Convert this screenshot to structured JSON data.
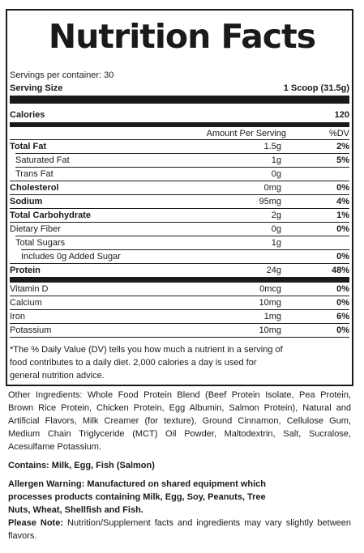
{
  "title": "Nutrition Facts",
  "servings": "Servings per container: 30",
  "serving_size": {
    "label": "Serving Size",
    "value": "1 Scoop (31.5g)"
  },
  "calories": {
    "label": "Calories",
    "value": "120"
  },
  "headers": {
    "amount": "Amount Per Serving",
    "dv": "%DV"
  },
  "nutrients": [
    {
      "name": "Total Fat",
      "amount": "1.5g",
      "dv": "2%",
      "bold": true,
      "indent": 0
    },
    {
      "name": "Saturated Fat",
      "amount": "1g",
      "dv": "5%",
      "bold": false,
      "indent": 1
    },
    {
      "name": "Trans Fat",
      "amount": "0g",
      "dv": "",
      "bold": false,
      "indent": 1
    },
    {
      "name": "Cholesterol",
      "amount": "0mg",
      "dv": "0%",
      "bold": true,
      "indent": 0
    },
    {
      "name": "Sodium",
      "amount": "95mg",
      "dv": "4%",
      "bold": true,
      "indent": 0
    },
    {
      "name": "Total Carbohydrate",
      "amount": "2g",
      "dv": "1%",
      "bold": true,
      "indent": 0
    },
    {
      "name": "Dietary Fiber",
      "amount": "0g",
      "dv": "0%",
      "bold": false,
      "indent": 0
    },
    {
      "name": "Total Sugars",
      "amount": "1g",
      "dv": "",
      "bold": false,
      "indent": 1
    },
    {
      "name": "Includes 0g Added Sugar",
      "amount": "",
      "dv": "0%",
      "bold": false,
      "indent": 2
    },
    {
      "name": "Protein",
      "amount": "24g",
      "dv": "48%",
      "bold": true,
      "indent": 0
    }
  ],
  "vitamins": [
    {
      "name": "Vitamin D",
      "amount": "0mcg",
      "dv": "0%"
    },
    {
      "name": "Calcium",
      "amount": "10mg",
      "dv": "0%"
    },
    {
      "name": "Iron",
      "amount": "1mg",
      "dv": "6%"
    },
    {
      "name": "Potassium",
      "amount": "10mg",
      "dv": "0%"
    }
  ],
  "footnote": "*The % Daily Value (DV) tells you how much a nutrient in a serving of food contributes to a daily diet. 2,000 calories a day is used for general nutrition advice.",
  "ingredients": "Other Ingredients: Whole Food Protein Blend (Beef Protein Isolate, Pea Protein, Brown Rice Protein, Chicken Protein, Egg Albumin, Salmon Protein), Natural and Artificial Flavors, Milk Creamer (for texture), Ground Cinnamon, Cellulose Gum, Medium Chain Triglyceride (MCT) Oil Powder, Maltodextrin, Salt, Sucralose, Acesulfame Potassium.",
  "contains": "Contains: Milk, Egg, Fish (Salmon)",
  "allergen": "Allergen Warning: Manufactured on shared equipment which processes products containing Milk, Egg, Soy, Peanuts, Tree Nuts, Wheat, Shellfish and Fish.",
  "note": {
    "label": "Please Note:",
    "text": " Nutrition/Supplement facts and ingredients may vary slightly between flavors."
  }
}
